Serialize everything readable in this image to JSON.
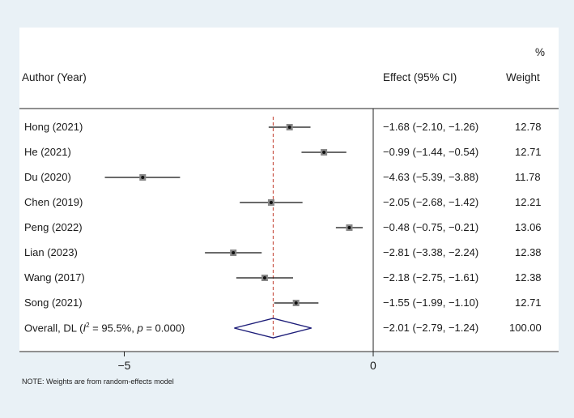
{
  "chart_data": {
    "type": "forest",
    "header": {
      "author_label": "Author (Year)",
      "effect_label": "Effect (95% CI)",
      "weight_top": "%",
      "weight_label": "Weight"
    },
    "studies": [
      {
        "label": "Hong (2021)",
        "effect": -1.68,
        "lo": -2.1,
        "hi": -1.26,
        "ci_text": "−1.68 (−2.10, −1.26)",
        "weight": "12.78"
      },
      {
        "label": "He (2021)",
        "effect": -0.99,
        "lo": -1.44,
        "hi": -0.54,
        "ci_text": "−0.99 (−1.44, −0.54)",
        "weight": "12.71"
      },
      {
        "label": "Du (2020)",
        "effect": -4.63,
        "lo": -5.39,
        "hi": -3.88,
        "ci_text": "−4.63 (−5.39, −3.88)",
        "weight": "11.78"
      },
      {
        "label": "Chen (2019)",
        "effect": -2.05,
        "lo": -2.68,
        "hi": -1.42,
        "ci_text": "−2.05 (−2.68, −1.42)",
        "weight": "12.21"
      },
      {
        "label": "Peng (2022)",
        "effect": -0.48,
        "lo": -0.75,
        "hi": -0.21,
        "ci_text": "−0.48 (−0.75, −0.21)",
        "weight": "13.06"
      },
      {
        "label": "Lian (2023)",
        "effect": -2.81,
        "lo": -3.38,
        "hi": -2.24,
        "ci_text": "−2.81 (−3.38, −2.24)",
        "weight": "12.38"
      },
      {
        "label": "Wang (2017)",
        "effect": -2.18,
        "lo": -2.75,
        "hi": -1.61,
        "ci_text": "−2.18 (−2.75, −1.61)",
        "weight": "12.38"
      },
      {
        "label": "Song (2021)",
        "effect": -1.55,
        "lo": -1.99,
        "hi": -1.1,
        "ci_text": "−1.55 (−1.99, −1.10)",
        "weight": "12.71"
      }
    ],
    "overall": {
      "label_prefix": "Overall, DL (",
      "i2_symbol": "I",
      "i2_sup": "2",
      "i2_value": " = 95.5%, ",
      "p_symbol": "p",
      "p_value": " = 0.000)",
      "effect": -2.01,
      "lo": -2.79,
      "hi": -1.24,
      "ci_text": "−2.01 (−2.79, −1.24)",
      "weight": "100.00"
    },
    "x_ticks": [
      {
        "value": -5,
        "label": "−5"
      },
      {
        "value": 0,
        "label": "0"
      }
    ],
    "null_line": 0,
    "note": "NOTE: Weights are from random-effects model",
    "colors": {
      "marker": "#888888",
      "ci": "#111111",
      "diamond": "#1c1c78",
      "overall_line": "#c0392b"
    }
  }
}
